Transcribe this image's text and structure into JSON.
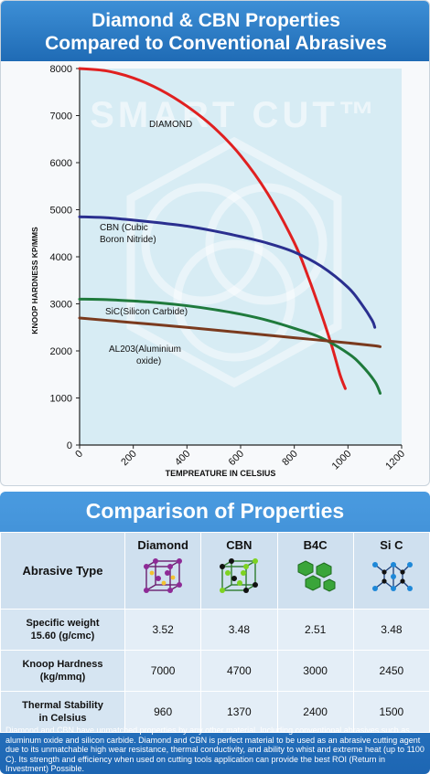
{
  "chart_header": {
    "line1": "Diamond & CBN Properties",
    "line2": "Compared to Conventional Abrasives"
  },
  "watermark": "SMART CUT™",
  "chart_data": {
    "type": "line",
    "xlabel": "TEMPREATURE IN CELSIUS",
    "ylabel": "KNOOP HARDNESS KP/MMS",
    "xlim": [
      0,
      1200
    ],
    "ylim": [
      0,
      8000
    ],
    "x_ticks": [
      0,
      200,
      400,
      600,
      800,
      1000,
      1200
    ],
    "y_ticks": [
      0,
      1000,
      2000,
      3000,
      4000,
      5000,
      6000,
      7000,
      8000
    ],
    "grid": false,
    "series": [
      {
        "name": "DIAMOND",
        "color": "#e02020",
        "x": [
          0,
          100,
          200,
          300,
          400,
          500,
          600,
          700,
          800,
          850,
          900,
          940,
          970,
          990
        ],
        "y": [
          8000,
          7950,
          7800,
          7550,
          7200,
          6750,
          6150,
          5350,
          4300,
          3600,
          2800,
          2100,
          1500,
          1200
        ]
      },
      {
        "name": "CBN (Cubic Boron Nitride)",
        "color": "#2a2f8f",
        "x": [
          0,
          100,
          200,
          300,
          400,
          500,
          600,
          700,
          800,
          900,
          1000,
          1050,
          1090,
          1100
        ],
        "y": [
          4850,
          4830,
          4780,
          4720,
          4650,
          4550,
          4430,
          4290,
          4100,
          3800,
          3350,
          3000,
          2650,
          2500
        ]
      },
      {
        "name": "SiC(Silicon Carbide)",
        "color": "#1f7a3c",
        "x": [
          0,
          100,
          200,
          300,
          400,
          500,
          600,
          700,
          800,
          900,
          1000,
          1050,
          1100,
          1120
        ],
        "y": [
          3100,
          3090,
          3060,
          3020,
          2960,
          2880,
          2780,
          2650,
          2480,
          2280,
          1950,
          1700,
          1350,
          1100
        ]
      },
      {
        "name": "AL203(Aluminium oxide)",
        "color": "#7a3a1e",
        "x": [
          0,
          200,
          400,
          600,
          800,
          1000,
          1100,
          1120
        ],
        "y": [
          2700,
          2600,
          2500,
          2390,
          2280,
          2170,
          2110,
          2090
        ]
      }
    ]
  },
  "comparison": {
    "title": "Comparison of Properties",
    "row_header": "Abrasive Type",
    "materials": [
      "Diamond",
      "CBN",
      "B4C",
      "Si C"
    ],
    "rows": [
      {
        "label_line1": "Specific weight",
        "label_line2": "15.60 (g/cmc)",
        "values": [
          "3.52",
          "3.48",
          "2.51",
          "3.48"
        ]
      },
      {
        "label_line1": "Knoop Hardness",
        "label_line2": "(kg/mmq)",
        "values": [
          "7000",
          "4700",
          "3000",
          "2450"
        ]
      },
      {
        "label_line1": "Thermal Stability",
        "label_line2": "in Celsius",
        "values": [
          "960",
          "1370",
          "2400",
          "1500"
        ]
      }
    ],
    "description": "Diamond and CBN have unmatched properties by any other material. Including conventional abrasives such as aluminum oxide and silicon carbide. Diamond and CBN is perfect material to be used as an abrasive cutting agent due to its unmatchable high wear resistance, thermal conductivity, and ability to whist and extreme heat (up to 1100 C). Its strength and efficiency when used on cutting tools application can provide the best ROI (Return in Investment) Possible."
  },
  "colors": {
    "header_blue": "#2a7cc8",
    "plot_bg": "#d7ecf4",
    "diamond_red": "#e02020",
    "cbn_navy": "#2a2f8f",
    "sic_green": "#1f7a3c",
    "al2o3_brown": "#7a3a1e"
  }
}
